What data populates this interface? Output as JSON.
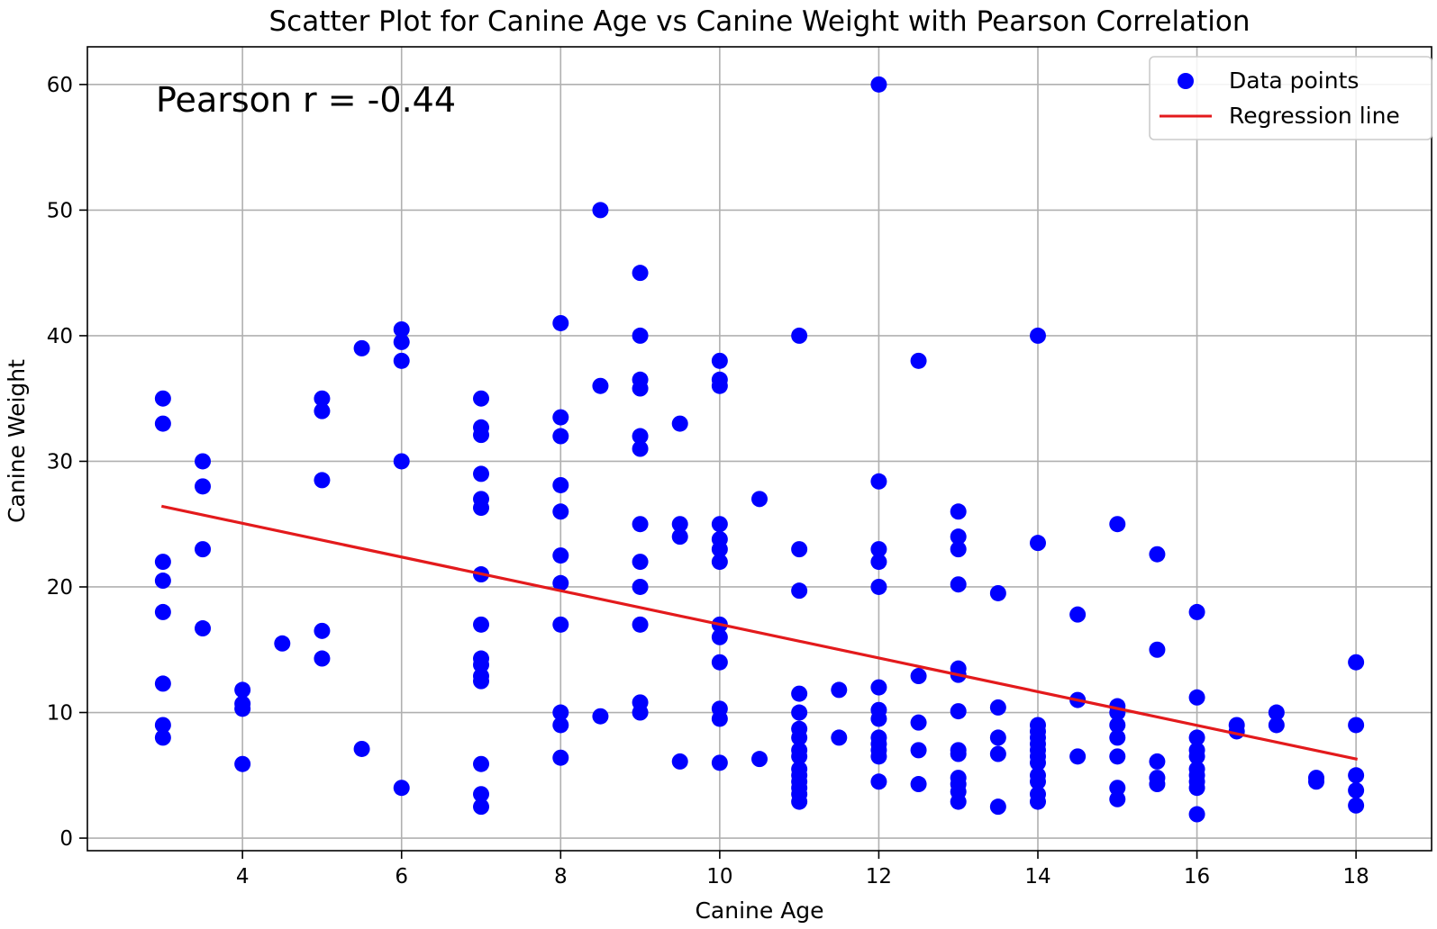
{
  "chart_data": {
    "type": "scatter",
    "title": "Scatter Plot for Canine Age vs Canine Weight with Pearson Correlation",
    "xlabel": "Canine Age",
    "ylabel": "Canine Weight",
    "xlim": [
      2.05,
      18.95
    ],
    "ylim": [
      -1.0,
      63.0
    ],
    "xticks": [
      4,
      6,
      8,
      10,
      12,
      14,
      16,
      18
    ],
    "yticks": [
      0,
      10,
      20,
      30,
      40,
      50,
      60
    ],
    "grid": true,
    "legend_position": "top-right",
    "annotation": "Pearson r = -0.44",
    "colors": {
      "points": "#0000ff",
      "line": "#e31a1c"
    },
    "series": [
      {
        "name": "Data points",
        "kind": "scatter",
        "points": [
          [
            3,
            35
          ],
          [
            3,
            33
          ],
          [
            3,
            22
          ],
          [
            3,
            20.5
          ],
          [
            3,
            18
          ],
          [
            3,
            12.3
          ],
          [
            3,
            9
          ],
          [
            3,
            8
          ],
          [
            3.5,
            30
          ],
          [
            3.5,
            28
          ],
          [
            3.5,
            23
          ],
          [
            3.5,
            16.7
          ],
          [
            4,
            11.8
          ],
          [
            4,
            10.7
          ],
          [
            4,
            10.3
          ],
          [
            4,
            5.9
          ],
          [
            4.5,
            15.5
          ],
          [
            5,
            35
          ],
          [
            5,
            34
          ],
          [
            5,
            28.5
          ],
          [
            5,
            16.5
          ],
          [
            5,
            14.3
          ],
          [
            5.5,
            39
          ],
          [
            5.5,
            7.1
          ],
          [
            6,
            40.5
          ],
          [
            6,
            39.5
          ],
          [
            6,
            38
          ],
          [
            6,
            30
          ],
          [
            6,
            4
          ],
          [
            7,
            35
          ],
          [
            7,
            32.7
          ],
          [
            7,
            32.1
          ],
          [
            7,
            29
          ],
          [
            7,
            27
          ],
          [
            7,
            26.3
          ],
          [
            7,
            21
          ],
          [
            7,
            17
          ],
          [
            7,
            14.3
          ],
          [
            7,
            13.8
          ],
          [
            7,
            12.9
          ],
          [
            7,
            12.5
          ],
          [
            7,
            5.9
          ],
          [
            7,
            3.5
          ],
          [
            7,
            2.5
          ],
          [
            8,
            41
          ],
          [
            8,
            33.5
          ],
          [
            8,
            32
          ],
          [
            8,
            28.1
          ],
          [
            8,
            26
          ],
          [
            8,
            22.5
          ],
          [
            8,
            20.3
          ],
          [
            8,
            17
          ],
          [
            8,
            10
          ],
          [
            8,
            9
          ],
          [
            8,
            6.4
          ],
          [
            8.5,
            50
          ],
          [
            8.5,
            36
          ],
          [
            8.5,
            9.7
          ],
          [
            9,
            45
          ],
          [
            9,
            40
          ],
          [
            9,
            36.5
          ],
          [
            9,
            35.8
          ],
          [
            9,
            32
          ],
          [
            9,
            31
          ],
          [
            9,
            25
          ],
          [
            9,
            22
          ],
          [
            9,
            20
          ],
          [
            9,
            17
          ],
          [
            9,
            10.8
          ],
          [
            9,
            10
          ],
          [
            9.5,
            33
          ],
          [
            9.5,
            25
          ],
          [
            9.5,
            24
          ],
          [
            9.5,
            6.1
          ],
          [
            10,
            38
          ],
          [
            10,
            36.5
          ],
          [
            10,
            36
          ],
          [
            10,
            25
          ],
          [
            10,
            23.8
          ],
          [
            10,
            23
          ],
          [
            10,
            22
          ],
          [
            10,
            17
          ],
          [
            10,
            16
          ],
          [
            10,
            14
          ],
          [
            10,
            10.3
          ],
          [
            10,
            9.5
          ],
          [
            10,
            6
          ],
          [
            10.5,
            27
          ],
          [
            10.5,
            6.3
          ],
          [
            11,
            40
          ],
          [
            11,
            23
          ],
          [
            11,
            19.7
          ],
          [
            11,
            11.5
          ],
          [
            11,
            10
          ],
          [
            11,
            8.7
          ],
          [
            11,
            8
          ],
          [
            11,
            7
          ],
          [
            11,
            6.5
          ],
          [
            11,
            5.5
          ],
          [
            11,
            5
          ],
          [
            11,
            4.5
          ],
          [
            11,
            4
          ],
          [
            11,
            3.5
          ],
          [
            11,
            2.9
          ],
          [
            11.5,
            11.8
          ],
          [
            11.5,
            8
          ],
          [
            12,
            60
          ],
          [
            12,
            28.4
          ],
          [
            12,
            23
          ],
          [
            12,
            22
          ],
          [
            12,
            20
          ],
          [
            12,
            12
          ],
          [
            12,
            10.2
          ],
          [
            12,
            9.5
          ],
          [
            12,
            8
          ],
          [
            12,
            7.5
          ],
          [
            12,
            7
          ],
          [
            12,
            6.5
          ],
          [
            12,
            4.5
          ],
          [
            12.5,
            38
          ],
          [
            12.5,
            12.9
          ],
          [
            12.5,
            9.2
          ],
          [
            12.5,
            7
          ],
          [
            12.5,
            4.3
          ],
          [
            13,
            26
          ],
          [
            13,
            24
          ],
          [
            13,
            23
          ],
          [
            13,
            20.2
          ],
          [
            13,
            13.5
          ],
          [
            13,
            13
          ],
          [
            13,
            10.1
          ],
          [
            13,
            7
          ],
          [
            13,
            6.7
          ],
          [
            13,
            4.8
          ],
          [
            13,
            4.3
          ],
          [
            13,
            3.7
          ],
          [
            13,
            2.9
          ],
          [
            13.5,
            19.5
          ],
          [
            13.5,
            10.4
          ],
          [
            13.5,
            8
          ],
          [
            13.5,
            6.7
          ],
          [
            13.5,
            2.5
          ],
          [
            14,
            40
          ],
          [
            14,
            23.5
          ],
          [
            14,
            9
          ],
          [
            14,
            8.5
          ],
          [
            14,
            8
          ],
          [
            14,
            7.5
          ],
          [
            14,
            7
          ],
          [
            14,
            6.5
          ],
          [
            14,
            6
          ],
          [
            14,
            5
          ],
          [
            14,
            4.5
          ],
          [
            14,
            3.5
          ],
          [
            14,
            2.9
          ],
          [
            14.5,
            17.8
          ],
          [
            14.5,
            11
          ],
          [
            14.5,
            6.5
          ],
          [
            15,
            25
          ],
          [
            15,
            10.5
          ],
          [
            15,
            10
          ],
          [
            15,
            9
          ],
          [
            15,
            8
          ],
          [
            15,
            6.5
          ],
          [
            15,
            4
          ],
          [
            15,
            3.1
          ],
          [
            15.5,
            22.6
          ],
          [
            15.5,
            15
          ],
          [
            15.5,
            6.1
          ],
          [
            15.5,
            4.8
          ],
          [
            15.5,
            4.3
          ],
          [
            16,
            18
          ],
          [
            16,
            11.2
          ],
          [
            16,
            8
          ],
          [
            16,
            7
          ],
          [
            16,
            6.5
          ],
          [
            16,
            5.5
          ],
          [
            16,
            5
          ],
          [
            16,
            4.5
          ],
          [
            16,
            4
          ],
          [
            16,
            1.9
          ],
          [
            16.5,
            9
          ],
          [
            16.5,
            8.5
          ],
          [
            17,
            10
          ],
          [
            17,
            9
          ],
          [
            17.5,
            4.8
          ],
          [
            17.5,
            4.5
          ],
          [
            18,
            14
          ],
          [
            18,
            9
          ],
          [
            18,
            5
          ],
          [
            18,
            3.8
          ],
          [
            18,
            2.6
          ]
        ]
      },
      {
        "name": "Regression line",
        "kind": "line",
        "x": [
          3,
          18
        ],
        "y": [
          26.4,
          6.3
        ]
      }
    ]
  }
}
